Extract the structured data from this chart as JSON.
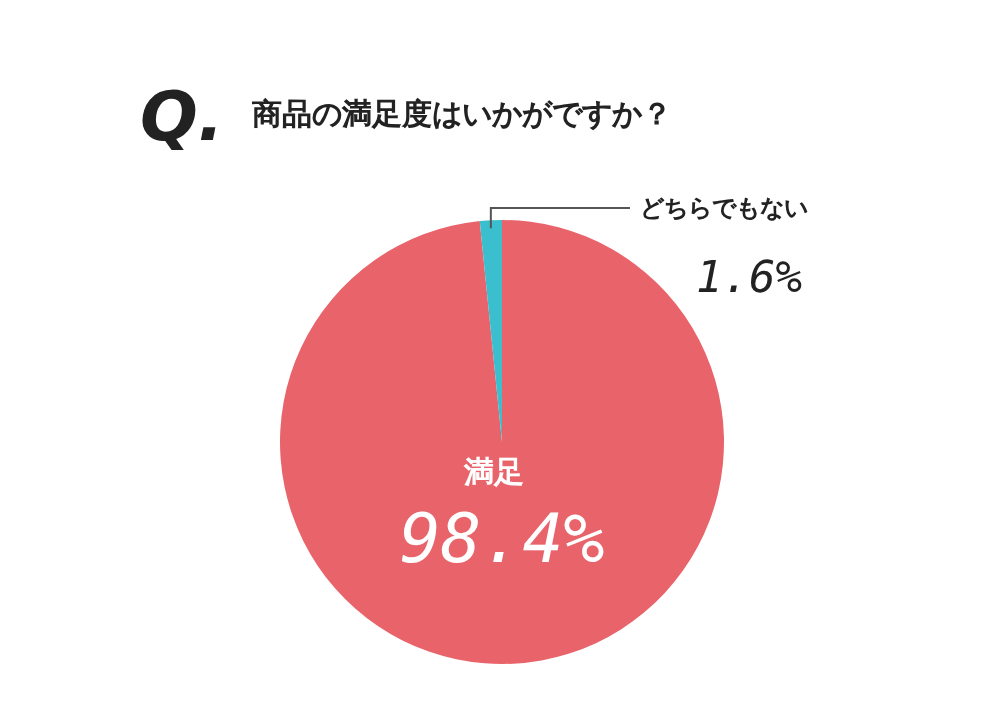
{
  "chart_data": {
    "type": "pie",
    "title": "Q. 商品の満足度はいかがですか？",
    "categories": [
      "満足",
      "どちらでもない"
    ],
    "values": [
      98.4,
      1.6
    ],
    "colors": [
      "#e8636a",
      "#3bbfcf"
    ],
    "value_labels": [
      "98.4%",
      "1.6%"
    ]
  }
}
